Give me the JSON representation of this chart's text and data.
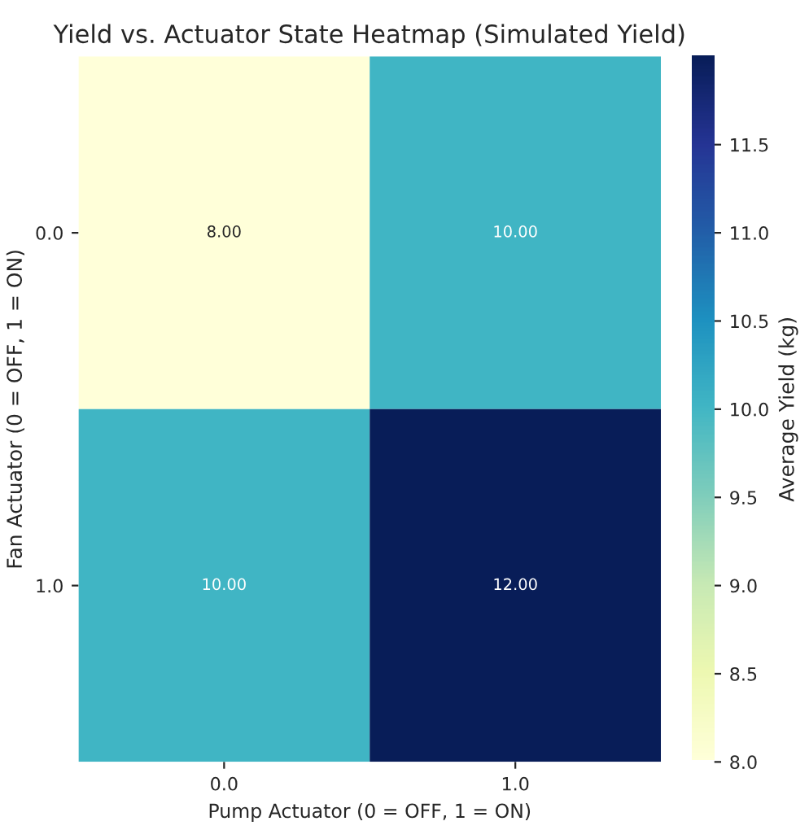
{
  "chart_data": {
    "type": "heatmap",
    "title": "Yield vs. Actuator State Heatmap (Simulated Yield)",
    "xlabel": "Pump Actuator (0 = OFF, 1 = ON)",
    "ylabel": "Fan Actuator (0 = OFF, 1 = ON)",
    "clabel": "Average Yield (kg)",
    "categories": [
      "0.0",
      "1.0"
    ],
    "y_categories": [
      "0.0",
      "1.0"
    ],
    "cells": [
      [
        8,
        10
      ],
      [
        10,
        12
      ]
    ],
    "cell_labels": [
      [
        "8.00",
        "10.00"
      ],
      [
        "10.00",
        "12.00"
      ]
    ],
    "clim": [
      8.0,
      12.0
    ],
    "cticks": [
      {
        "value": 8,
        "label": "8.0"
      },
      8.5,
      {
        "value": 9,
        "label": "9.0"
      },
      9.5,
      {
        "value": 10,
        "label": "10.0"
      },
      10.5,
      {
        "value": 11,
        "label": "11.0"
      },
      11.5
    ]
  }
}
